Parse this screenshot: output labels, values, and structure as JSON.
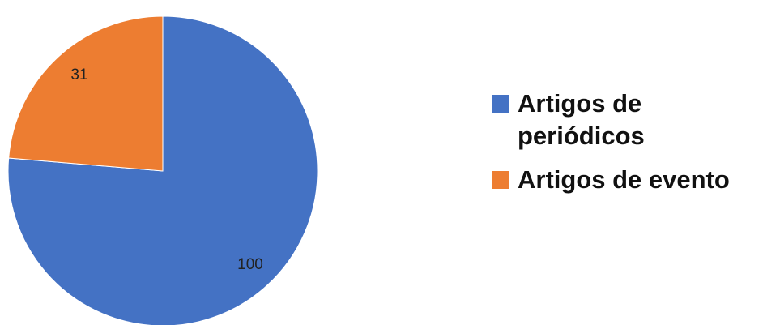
{
  "chart_data": {
    "type": "pie",
    "series": [
      {
        "name": "Artigos de periódicos",
        "value": 100,
        "color": "#4472C4"
      },
      {
        "name": "Artigos de evento",
        "value": 31,
        "color": "#ED7D31"
      }
    ],
    "data_labels": [
      "100",
      "31"
    ],
    "legend_placement": "right",
    "start_angle": "12 o'clock, clockwise"
  }
}
